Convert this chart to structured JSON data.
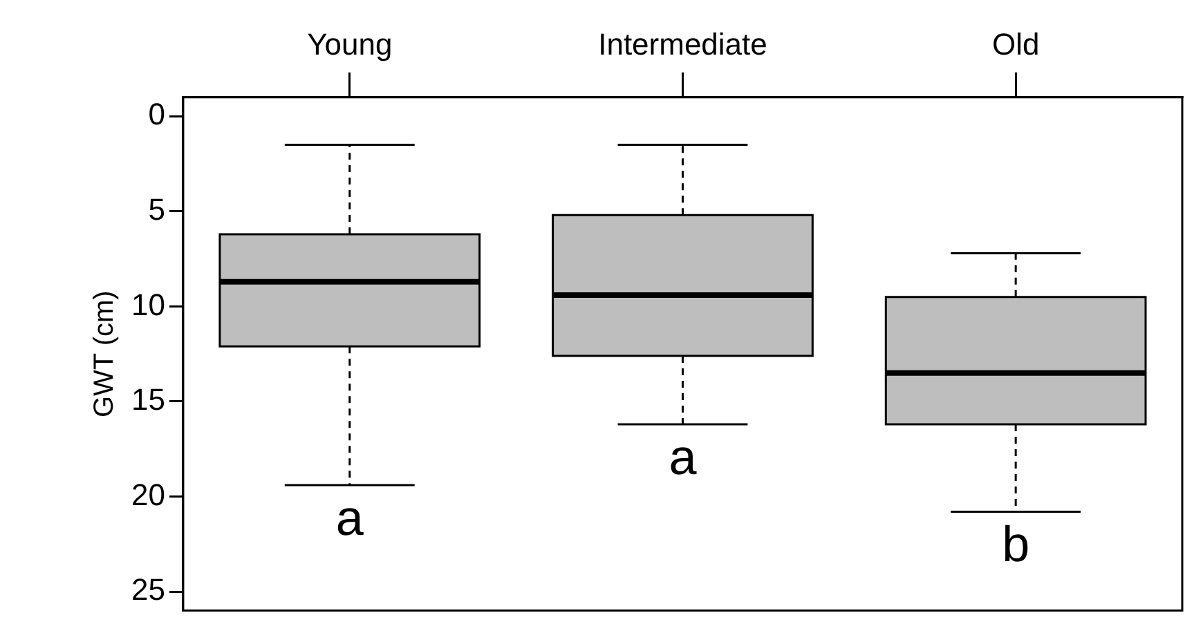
{
  "chart_data": {
    "type": "box",
    "ylabel": "GWT (cm)",
    "categories": [
      "Young",
      "Intermediate",
      "Old"
    ],
    "series": [
      {
        "color": "#bebebe",
        "boxes": [
          {
            "low": 1.5,
            "q1": 6.2,
            "median": 8.7,
            "q3": 12.1,
            "high": 19.4
          },
          {
            "low": 1.5,
            "q1": 5.2,
            "median": 9.4,
            "q3": 12.6,
            "high": 16.2
          },
          {
            "low": 7.2,
            "q1": 9.5,
            "median": 13.5,
            "q3": 16.2,
            "high": 20.8
          }
        ]
      }
    ],
    "ylim": [
      26,
      -1
    ],
    "yticks": [
      0,
      5,
      10,
      15,
      20,
      25
    ],
    "annotations": [
      "a",
      "a",
      "b"
    ]
  }
}
